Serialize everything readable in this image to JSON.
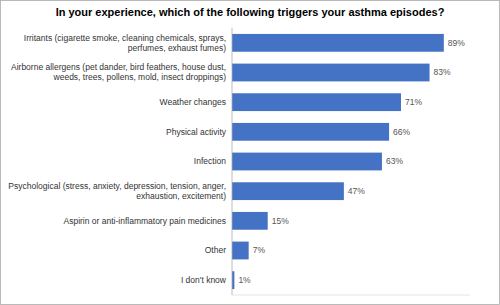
{
  "chart_data": {
    "type": "bar",
    "orientation": "horizontal",
    "title": "In your experience, which of the following triggers your asthma episodes?",
    "categories": [
      "I don't know",
      "Other",
      "Aspirin or anti-inflammatory pain medicines",
      "Psychological (stress, anxiety, depression, tension, anger,\nexhaustion, excitement)",
      "Infection",
      "Physical activity",
      "Weather changes",
      "Airborne allergens (pet dander, bird feathers, house dust,\nweeds, trees, pollens, mold, insect droppings)",
      "Irritants (cigarette smoke, cleaning chemicals, sprays,\nperfumes, exhaust fumes)"
    ],
    "values": [
      1,
      7,
      15,
      47,
      63,
      66,
      71,
      83,
      89
    ],
    "value_labels": [
      "1%",
      "7%",
      "15%",
      "47%",
      "63%",
      "66%",
      "71%",
      "83%",
      "89%"
    ],
    "color": "#4472C4",
    "xlim": [
      0,
      100
    ],
    "data_labels": true,
    "tick_labels": "y"
  }
}
